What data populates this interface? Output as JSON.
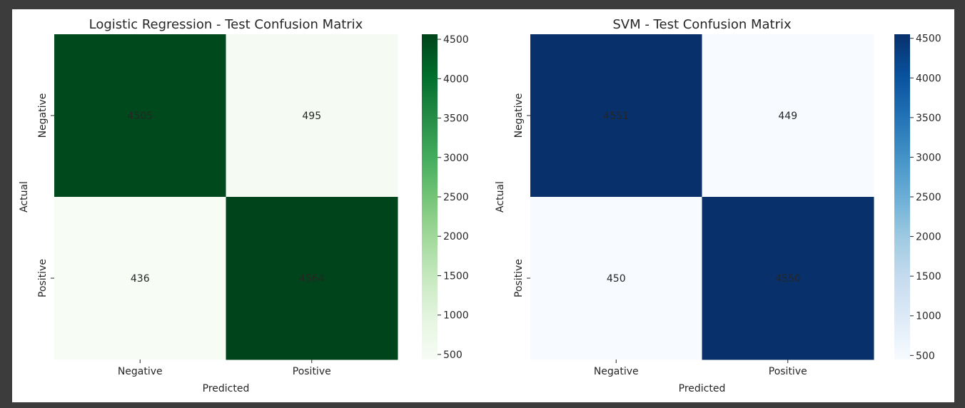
{
  "colors": {
    "greens_dark": "#00441b",
    "greens_light": "#f7fcf5",
    "blues_dark": "#08306b",
    "blues_light": "#f7fbff",
    "annot_on_dark": "#ffffff",
    "annot_on_light": "#262626"
  },
  "chart_data": [
    {
      "type": "heatmap",
      "title": "Logistic Regression - Test Confusion Matrix",
      "xlabel": "Predicted",
      "ylabel": "Actual",
      "x_categories": [
        "Negative",
        "Positive"
      ],
      "y_categories": [
        "Negative",
        "Positive"
      ],
      "values": [
        [
          4505,
          495
        ],
        [
          436,
          4564
        ]
      ],
      "colormap": "Greens",
      "color_range": [
        436,
        4564
      ],
      "colorbar_ticks": [
        500,
        1000,
        1500,
        2000,
        2500,
        3000,
        3500,
        4000,
        4500
      ]
    },
    {
      "type": "heatmap",
      "title": "SVM - Test Confusion Matrix",
      "xlabel": "Predicted",
      "ylabel": "Actual",
      "x_categories": [
        "Negative",
        "Positive"
      ],
      "y_categories": [
        "Negative",
        "Positive"
      ],
      "values": [
        [
          4551,
          449
        ],
        [
          450,
          4550
        ]
      ],
      "colormap": "Blues",
      "color_range": [
        449,
        4551
      ],
      "colorbar_ticks": [
        500,
        1000,
        1500,
        2000,
        2500,
        3000,
        3500,
        4000,
        4500
      ]
    }
  ]
}
